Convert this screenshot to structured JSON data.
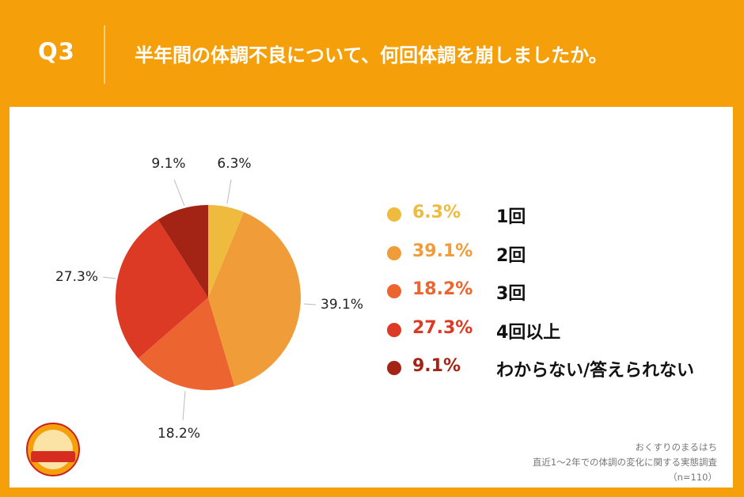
{
  "header": {
    "q_label": "Q3",
    "question": "半年間の体調不良について、何回体調を崩しましたか。"
  },
  "colors": {
    "background": "#f5a00b",
    "panel": "#ffffff",
    "text": "#111111"
  },
  "chart_data": {
    "type": "pie",
    "title": "半年間の体調不良について、何回体調を崩しましたか。",
    "start_angle_deg": 0,
    "direction": "clockwise",
    "slices": [
      {
        "label": "1回",
        "value": 6.3,
        "display": "6.3%",
        "color": "#efbb3f"
      },
      {
        "label": "2回",
        "value": 39.1,
        "display": "39.1%",
        "color": "#f09c38"
      },
      {
        "label": "3回",
        "value": 18.2,
        "display": "18.2%",
        "color": "#ec6530"
      },
      {
        "label": "4回以上",
        "value": 27.3,
        "display": "27.3%",
        "color": "#dc3a25"
      },
      {
        "label": "わからない/答えられない",
        "value": 9.1,
        "display": "9.1%",
        "color": "#a32414"
      }
    ],
    "legend_position": "right"
  },
  "legend": {
    "items": [
      {
        "pct": "6.3%",
        "label": "1回",
        "color": "#efbb3f",
        "text_color": "#efbb3f"
      },
      {
        "pct": "39.1%",
        "label": "2回",
        "color": "#f09c38",
        "text_color": "#f09c38"
      },
      {
        "pct": "18.2%",
        "label": "3回",
        "color": "#ec6530",
        "text_color": "#ec6530"
      },
      {
        "pct": "27.3%",
        "label": "4回以上",
        "color": "#dc3a25",
        "text_color": "#dc3a25"
      },
      {
        "pct": "9.1%",
        "label": "わからない/答えられない",
        "color": "#a32414",
        "text_color": "#a32414"
      }
    ]
  },
  "footer": {
    "brand": "おくすりのまるはち",
    "survey": "直近1～2年での体調の変化に関する実態調査",
    "sample": "（n=110）"
  },
  "logo": {
    "icon": "maruhachi-logo-icon"
  }
}
